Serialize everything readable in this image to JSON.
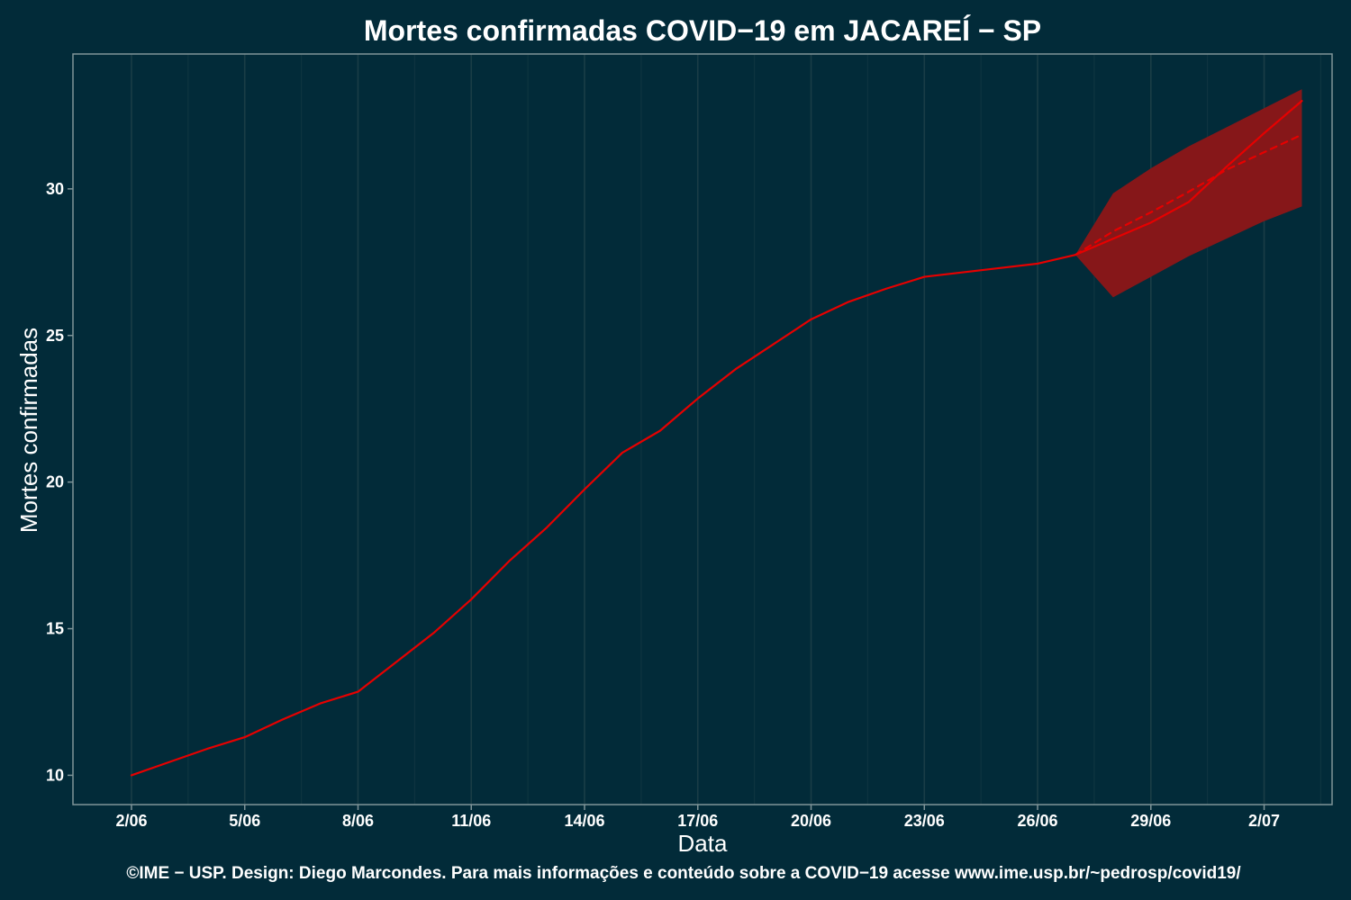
{
  "chart_data": {
    "type": "line",
    "title": "Mortes confirmadas COVID−19 em JACAREÍ − SP",
    "xlabel": "Data",
    "ylabel": "Mortes confirmadas",
    "x_tick_labels": [
      "2/06",
      "5/06",
      "8/06",
      "11/06",
      "14/06",
      "17/06",
      "20/06",
      "23/06",
      "26/06",
      "29/06",
      "2/07"
    ],
    "x_tick_days": [
      2,
      5,
      8,
      11,
      14,
      17,
      20,
      23,
      26,
      29,
      32
    ],
    "y_ticks": [
      10,
      15,
      20,
      25,
      30
    ],
    "xlim": [
      0.45,
      33.8
    ],
    "ylim": [
      9.0,
      34.6
    ],
    "grid": true,
    "colors": {
      "background": "#022b39",
      "line": "#e60000",
      "band": "#861719",
      "grid": "#1d4048",
      "frame": "#7f9498"
    },
    "series": [
      {
        "style": "solid",
        "x": [
          2,
          3,
          4,
          5,
          6,
          7,
          8,
          9,
          10,
          11,
          12,
          13,
          14,
          15,
          16,
          17,
          18,
          19,
          20,
          21,
          22,
          23,
          24,
          25,
          26,
          27,
          28,
          29,
          30,
          31,
          32,
          33
        ],
        "y": [
          10.0,
          10.45,
          10.9,
          11.3,
          11.9,
          12.45,
          12.85,
          13.85,
          14.85,
          16.0,
          17.3,
          18.45,
          19.75,
          21.0,
          21.75,
          22.85,
          23.85,
          24.7,
          25.55,
          26.15,
          26.6,
          27.0,
          27.15,
          27.3,
          27.45,
          27.75,
          28.3,
          28.85,
          29.55,
          30.75,
          31.9,
          33.0
        ]
      },
      {
        "style": "dashed",
        "x": [
          27,
          28,
          29,
          30,
          31,
          32,
          33
        ],
        "y": [
          27.75,
          28.55,
          29.2,
          29.9,
          30.65,
          31.25,
          31.85
        ]
      }
    ],
    "band": {
      "x": [
        27,
        28,
        29,
        30,
        31,
        32,
        33
      ],
      "lower": [
        27.75,
        26.3,
        27.0,
        27.7,
        28.3,
        28.9,
        29.4
      ],
      "upper": [
        27.75,
        29.85,
        30.7,
        31.45,
        32.1,
        32.75,
        33.4
      ]
    }
  },
  "caption": "©IME − USP. Design: Diego Marcondes. Para mais informações e conteúdo sobre a COVID−19 acesse www.ime.usp.br/~pedrosp/covid19/"
}
